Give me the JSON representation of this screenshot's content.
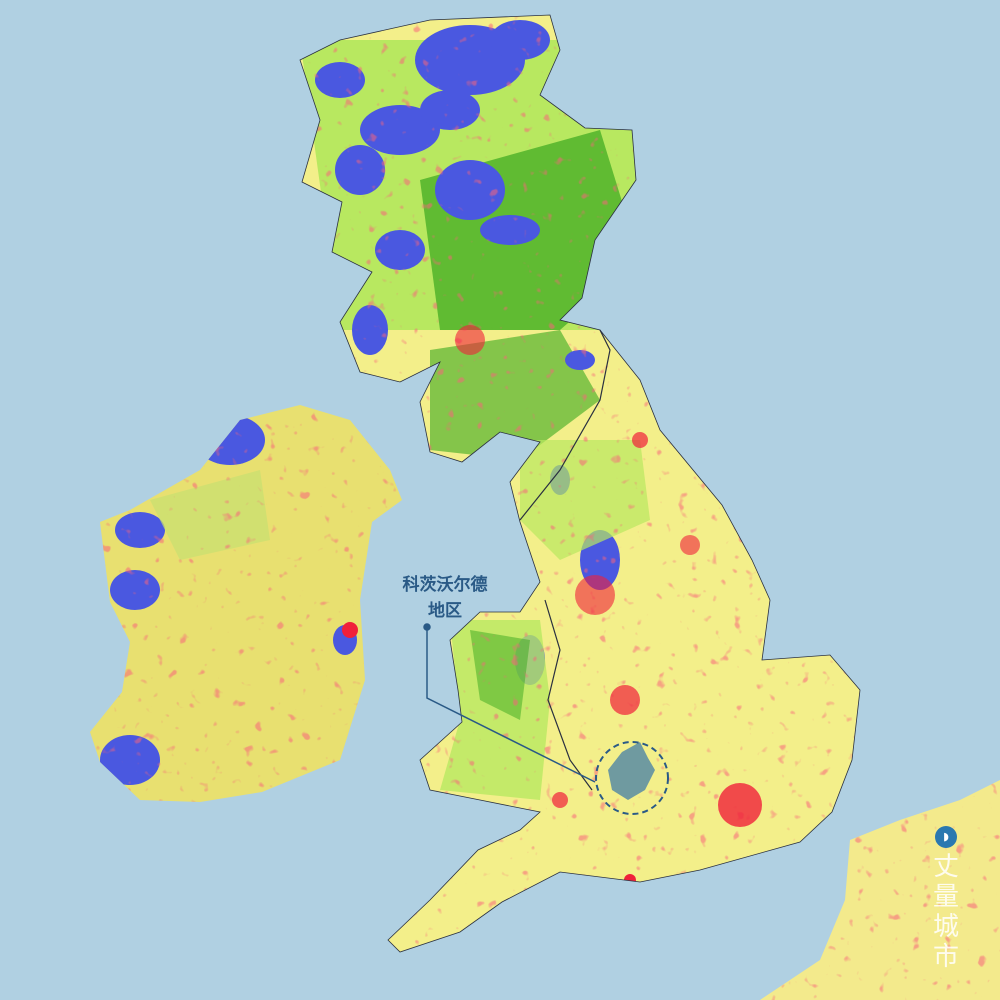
{
  "map": {
    "colors": {
      "sea": "#b0d0e2",
      "land_agricultural": "#f3ef8a",
      "land_grass": "#b8e860",
      "forest": "#3aa820",
      "mountain_moorland": "#4a58e0",
      "urban": "#f0203a",
      "highlight_region": "#6f9aa0",
      "borders": "#2a3040"
    },
    "annotation": {
      "line1": "科茨沃尔德",
      "line2": "地区"
    }
  },
  "watermark": {
    "logo_icon": "city-logo-icon",
    "text": "丈量城市"
  }
}
